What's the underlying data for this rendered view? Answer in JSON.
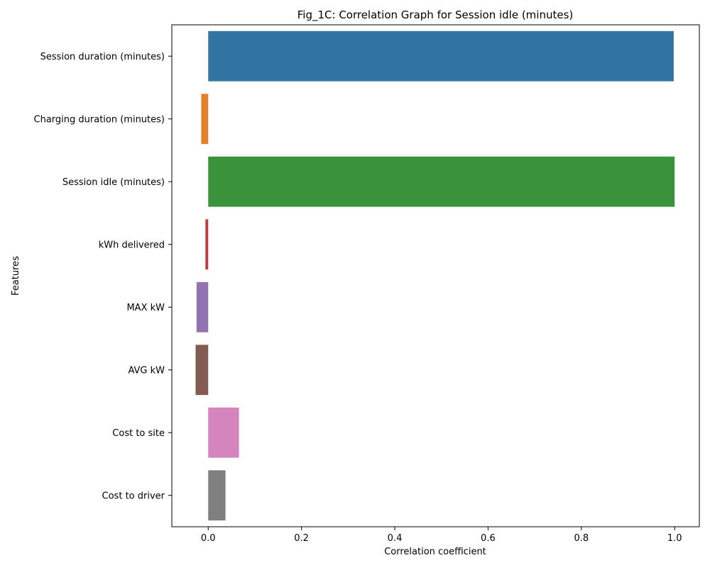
{
  "chart_data": {
    "type": "bar",
    "orientation": "horizontal",
    "title": "Fig_1C: Correlation Graph for Session idle (minutes)",
    "xlabel": "Correlation coefficient",
    "ylabel": "Features",
    "xlim": [
      -0.078,
      1.053
    ],
    "xticks": [
      0.0,
      0.2,
      0.4,
      0.6,
      0.8,
      1.0
    ],
    "xtick_labels": [
      "0.0",
      "0.2",
      "0.4",
      "0.6",
      "0.8",
      "1.0"
    ],
    "grid": false,
    "legend": "none",
    "categories": [
      "Session duration (minutes)",
      "Charging duration (minutes)",
      "Session idle (minutes)",
      "kWh delivered",
      "MAX kW",
      "AVG kW",
      "Cost to site",
      "Cost to driver"
    ],
    "values": [
      0.998,
      -0.015,
      1.0,
      -0.006,
      -0.025,
      -0.027,
      0.066,
      0.037
    ],
    "colors": [
      "#3274a1",
      "#e1812c",
      "#3a923a",
      "#c03d3e",
      "#9372b2",
      "#845b53",
      "#d684bd",
      "#7f7f7f"
    ]
  }
}
